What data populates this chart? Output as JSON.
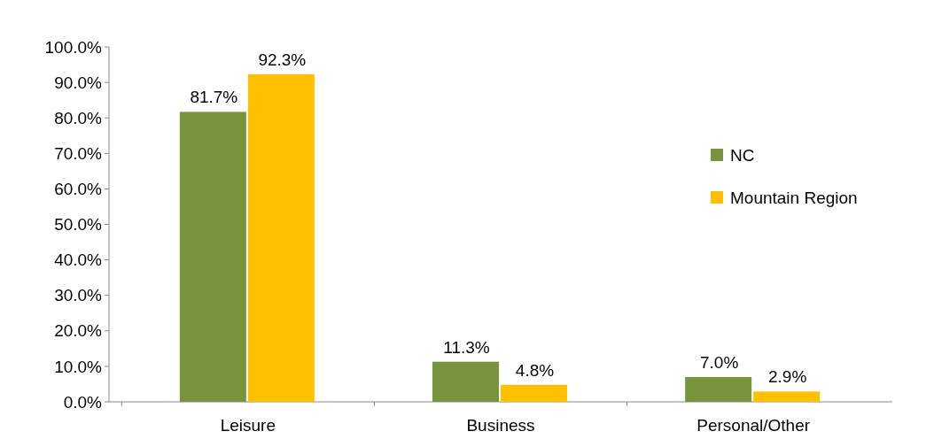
{
  "chart_data": {
    "type": "bar",
    "categories": [
      "Leisure",
      "Business",
      "Personal/Other"
    ],
    "series": [
      {
        "name": "NC",
        "color": "#77933c",
        "values": [
          81.7,
          11.3,
          7.0
        ],
        "value_labels": [
          "81.7%",
          "11.3%",
          "7.0%"
        ]
      },
      {
        "name": "Mountain Region",
        "color": "#ffc000",
        "values": [
          92.3,
          4.8,
          2.9
        ],
        "value_labels": [
          "92.3%",
          "4.8%",
          "2.9%"
        ]
      }
    ],
    "ylim": [
      0,
      100
    ],
    "yticks": [
      {
        "value": 0,
        "label": "0.0%"
      },
      {
        "value": 10,
        "label": "10.0%"
      },
      {
        "value": 20,
        "label": "20.0%"
      },
      {
        "value": 30,
        "label": "30.0%"
      },
      {
        "value": 40,
        "label": "40.0%"
      },
      {
        "value": 50,
        "label": "50.0%"
      },
      {
        "value": 60,
        "label": "60.0%"
      },
      {
        "value": 70,
        "label": "70.0%"
      },
      {
        "value": 80,
        "label": "80.0%"
      },
      {
        "value": 90,
        "label": "90.0%"
      },
      {
        "value": 100,
        "label": "100.0%"
      }
    ],
    "legend": "right",
    "grid": false
  }
}
